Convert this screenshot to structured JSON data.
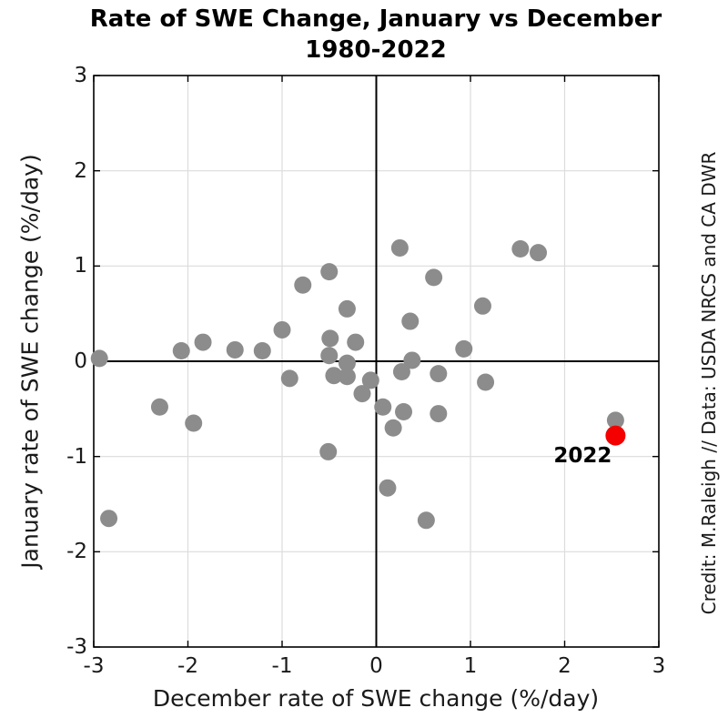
{
  "title": {
    "line1": "Rate of SWE Change, January vs December",
    "line2": "1980-2022"
  },
  "credit": "Credit: M.Raleigh // Data: USDA NRCS and CA DWR",
  "annotation": {
    "label": "2022"
  },
  "colors": {
    "gray_marker": "#8c8c8c",
    "red_marker": "#f40000",
    "grid": "#dcdcdc",
    "axis": "#000000",
    "zero_line": "#000000",
    "text": "#1a1a1a"
  },
  "chart_data": {
    "type": "scatter",
    "title": "Rate of SWE Change, January vs December 1980-2022",
    "xlabel": "December rate of SWE change (%/day)",
    "ylabel": "January rate of SWE change (%/day)",
    "xlim": [
      -3,
      3
    ],
    "ylim": [
      -3,
      3
    ],
    "x_ticks": [
      -3,
      -2,
      -1,
      0,
      1,
      2,
      3
    ],
    "x_tick_labels": [
      "-3",
      "-2",
      "-1",
      "0",
      "1",
      "2",
      "3"
    ],
    "y_ticks": [
      3,
      2,
      1,
      0,
      -1,
      -2,
      -3
    ],
    "y_tick_labels": [
      "3",
      "2",
      "1",
      "0",
      "-1",
      "-2",
      "-3"
    ],
    "grid": true,
    "zero_lines": true,
    "legend": "none",
    "series": [
      {
        "name": "years-1980-2021",
        "color": "#8c8c8c",
        "marker_radius": 9.5,
        "points": [
          [
            -2.94,
            0.03
          ],
          [
            -2.84,
            -1.65
          ],
          [
            -2.3,
            -0.48
          ],
          [
            -2.07,
            0.11
          ],
          [
            -1.94,
            -0.65
          ],
          [
            -1.84,
            0.2
          ],
          [
            -1.5,
            0.12
          ],
          [
            -1.21,
            0.11
          ],
          [
            -1.0,
            0.33
          ],
          [
            -0.92,
            -0.18
          ],
          [
            -0.78,
            0.8
          ],
          [
            -0.51,
            -0.95
          ],
          [
            -0.5,
            0.94
          ],
          [
            -0.5,
            0.06
          ],
          [
            -0.49,
            0.24
          ],
          [
            -0.45,
            -0.15
          ],
          [
            -0.31,
            0.55
          ],
          [
            -0.31,
            -0.02
          ],
          [
            -0.31,
            -0.16
          ],
          [
            -0.22,
            0.2
          ],
          [
            -0.15,
            -0.34
          ],
          [
            -0.06,
            -0.2
          ],
          [
            0.07,
            -0.48
          ],
          [
            0.12,
            -1.33
          ],
          [
            0.18,
            -0.7
          ],
          [
            0.25,
            1.19
          ],
          [
            0.27,
            -0.11
          ],
          [
            0.29,
            -0.53
          ],
          [
            0.36,
            0.42
          ],
          [
            0.38,
            0.01
          ],
          [
            0.53,
            -1.67
          ],
          [
            0.61,
            0.88
          ],
          [
            0.66,
            -0.13
          ],
          [
            0.66,
            -0.55
          ],
          [
            0.93,
            0.13
          ],
          [
            1.13,
            0.58
          ],
          [
            1.16,
            -0.22
          ],
          [
            1.53,
            1.18
          ],
          [
            1.72,
            1.14
          ],
          [
            2.54,
            -0.62
          ]
        ]
      },
      {
        "name": "year-2022",
        "color": "#f40000",
        "marker_radius": 11,
        "label": "2022",
        "points": [
          [
            2.54,
            -0.78
          ]
        ]
      }
    ]
  }
}
